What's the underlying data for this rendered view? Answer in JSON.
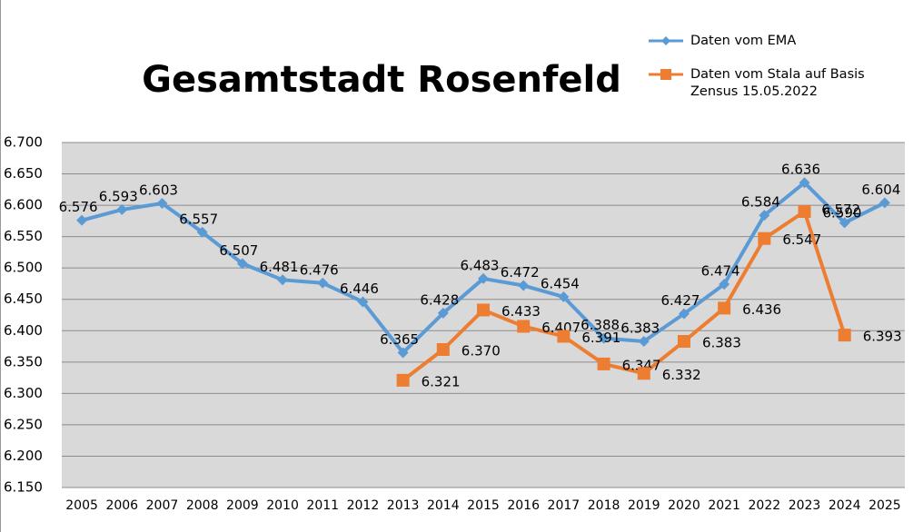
{
  "chart_data": {
    "type": "line",
    "title": "Gesamtstadt Rosenfeld",
    "categories": [
      "2005",
      "2006",
      "2007",
      "2008",
      "2009",
      "2010",
      "2011",
      "2012",
      "2013",
      "2014",
      "2015",
      "2016",
      "2017",
      "2018",
      "2019",
      "2020",
      "2021",
      "2022",
      "2023",
      "2024",
      "2025"
    ],
    "series": [
      {
        "name": "Daten vom EMA",
        "color": "#5b9bd5",
        "marker": "diamond",
        "values": [
          6576,
          6593,
          6603,
          6557,
          6507,
          6481,
          6476,
          6446,
          6365,
          6428,
          6483,
          6472,
          6454,
          6388,
          6383,
          6427,
          6474,
          6584,
          6636,
          6572,
          6604
        ],
        "value_labels": [
          "6.576",
          "6.593",
          "6.603",
          "6.557",
          "6.507",
          "6.481",
          "6.476",
          "6.446",
          "6.365",
          "6.428",
          "6.483",
          "6.472",
          "6.454",
          "6.388",
          "6.383",
          "6.427",
          "6.474",
          "6.584",
          "6.636",
          "6.572",
          "6.604"
        ]
      },
      {
        "name": "Daten vom Stala auf Basis Zensus 15.05.2022",
        "color": "#ed7d31",
        "marker": "square",
        "values": [
          null,
          null,
          null,
          null,
          null,
          null,
          null,
          null,
          6321,
          6370,
          6433,
          6407,
          6391,
          6347,
          6332,
          6383,
          6436,
          6547,
          6590,
          6393,
          null
        ],
        "value_labels": [
          null,
          null,
          null,
          null,
          null,
          null,
          null,
          null,
          "6.321",
          "6.370",
          "6.433",
          "6.407",
          "6.391",
          "6.347",
          "6.332",
          "6.383",
          "6.436",
          "6.547",
          "6.590",
          "6.393",
          null
        ]
      }
    ],
    "ylim": [
      6150,
      6700
    ],
    "yticks": [
      {
        "value": 6150,
        "label": "6.150"
      },
      {
        "value": 6200,
        "label": "6.200"
      },
      {
        "value": 6250,
        "label": "6.250"
      },
      {
        "value": 6300,
        "label": "6.300"
      },
      {
        "value": 6350,
        "label": "6.350"
      },
      {
        "value": 6400,
        "label": "6.400"
      },
      {
        "value": 6450,
        "label": "6.450"
      },
      {
        "value": 6500,
        "label": "6.500"
      },
      {
        "value": 6550,
        "label": "6.550"
      },
      {
        "value": 6600,
        "label": "6.600"
      },
      {
        "value": 6650,
        "label": "6.650"
      },
      {
        "value": 6700,
        "label": "6.700"
      }
    ],
    "grid": true,
    "legend": "top-right"
  }
}
